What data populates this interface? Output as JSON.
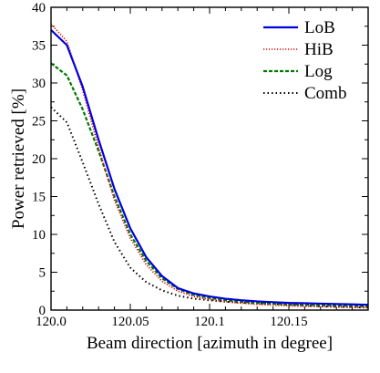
{
  "chart_data": {
    "type": "line",
    "title": "",
    "xlabel": "Beam direction [azimuth in degree]",
    "ylabel": "Power retrieved [%]",
    "xlim": [
      120.0,
      120.2
    ],
    "ylim": [
      0,
      40
    ],
    "x_ticks": [
      120.0,
      120.05,
      120.1,
      120.15
    ],
    "x_tick_labels": [
      "120.0",
      "120.05",
      "120.1",
      "120.15"
    ],
    "y_ticks": [
      0,
      5,
      10,
      15,
      20,
      25,
      30,
      35,
      40
    ],
    "y_tick_labels": [
      "0",
      "5",
      "10",
      "15",
      "20",
      "25",
      "30",
      "35",
      "40"
    ],
    "grid": false,
    "legend_position": "top-right",
    "series": [
      {
        "name": "LoB",
        "color": "#0000dd",
        "dash": "solid",
        "x": [
          120.0,
          120.01,
          120.02,
          120.03,
          120.04,
          120.05,
          120.06,
          120.07,
          120.08,
          120.09,
          120.1,
          120.11,
          120.12,
          120.13,
          120.14,
          120.15,
          120.16,
          120.17,
          120.18,
          120.19,
          120.2
        ],
        "y": [
          37.0,
          35.0,
          29.5,
          22.5,
          16.0,
          10.8,
          7.0,
          4.5,
          2.9,
          2.2,
          1.8,
          1.5,
          1.3,
          1.15,
          1.05,
          0.95,
          0.9,
          0.85,
          0.8,
          0.75,
          0.7
        ]
      },
      {
        "name": "HiB",
        "color": "#dd0000",
        "dash": "dotted-fine",
        "x": [
          120.0,
          120.01,
          120.02,
          120.03,
          120.04,
          120.05,
          120.06,
          120.07,
          120.08,
          120.09,
          120.1,
          120.11,
          120.12,
          120.13,
          120.14,
          120.15,
          120.16,
          120.17,
          120.18,
          120.19,
          120.2
        ],
        "y": [
          37.8,
          35.5,
          29.0,
          21.5,
          14.5,
          9.5,
          6.0,
          3.8,
          2.5,
          1.8,
          1.4,
          1.1,
          0.9,
          0.75,
          0.65,
          0.55,
          0.5,
          0.45,
          0.4,
          0.35,
          0.3
        ]
      },
      {
        "name": "Log",
        "color": "#007700",
        "dash": "dashed",
        "x": [
          120.0,
          120.01,
          120.02,
          120.03,
          120.04,
          120.05,
          120.06,
          120.07,
          120.08,
          120.09,
          120.1,
          120.11,
          120.12,
          120.13,
          120.14,
          120.15,
          120.16,
          120.17,
          120.18,
          120.19,
          120.2
        ],
        "y": [
          32.6,
          31.0,
          26.5,
          21.0,
          15.0,
          10.0,
          6.5,
          4.2,
          2.8,
          2.0,
          1.6,
          1.3,
          1.1,
          0.95,
          0.85,
          0.75,
          0.7,
          0.65,
          0.6,
          0.55,
          0.5
        ]
      },
      {
        "name": "Comb",
        "color": "#000000",
        "dash": "dotted",
        "x": [
          120.0,
          120.01,
          120.02,
          120.03,
          120.04,
          120.05,
          120.06,
          120.07,
          120.08,
          120.09,
          120.1,
          120.11,
          120.12,
          120.13,
          120.14,
          120.15,
          120.16,
          120.17,
          120.18,
          120.19,
          120.2
        ],
        "y": [
          26.8,
          24.8,
          19.5,
          14.0,
          9.0,
          5.6,
          3.7,
          2.6,
          1.9,
          1.5,
          1.3,
          1.1,
          1.0,
          0.9,
          0.8,
          0.7,
          0.6,
          0.5,
          0.45,
          0.4,
          0.35
        ]
      }
    ]
  }
}
